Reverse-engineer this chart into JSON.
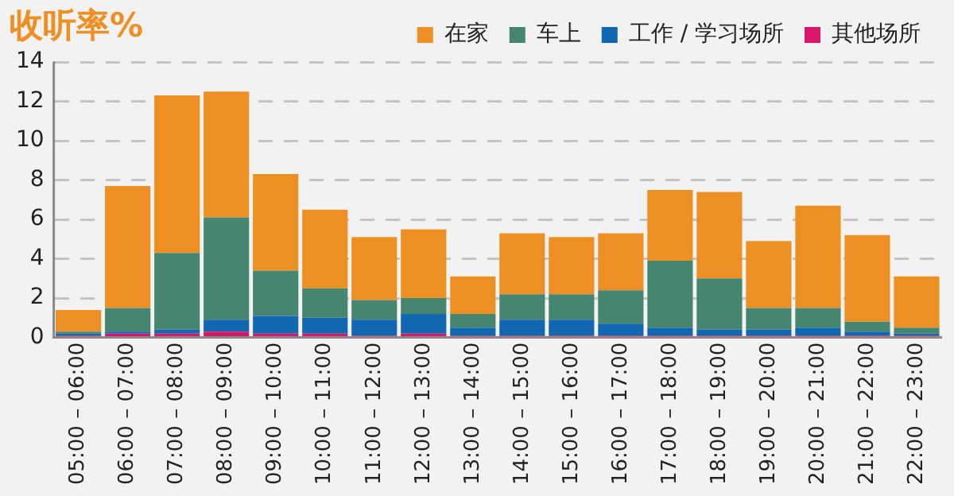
{
  "chart_data": {
    "type": "bar",
    "title": "收听率%",
    "stacked": true,
    "legend": "top right",
    "grid": "y",
    "categories": [
      "05:00 – 06:00",
      "06:00 – 07:00",
      "07:00 – 08:00",
      "08:00 – 09:00",
      "09:00 – 10:00",
      "10:00 – 11:00",
      "11:00 – 12:00",
      "12:00 – 13:00",
      "13:00 – 14:00",
      "14:00 – 15:00",
      "15:00 – 16:00",
      "16:00 – 17:00",
      "17:00 – 18:00",
      "18:00 – 19:00",
      "19:00 – 20:00",
      "20:00 – 21:00",
      "21:00 – 22:00",
      "22:00 – 23:00"
    ],
    "ylim": [
      0,
      14
    ],
    "yticks": [
      0,
      2,
      4,
      6,
      8,
      10,
      12,
      14
    ],
    "series": [
      {
        "name": "其他场所",
        "color": "#d8176a",
        "values": [
          0.1,
          0.2,
          0.2,
          0.3,
          0.2,
          0.2,
          0.1,
          0.2,
          0.1,
          0.1,
          0.1,
          0.1,
          0.1,
          0.1,
          0.1,
          0.1,
          0.1,
          0.1
        ]
      },
      {
        "name": "工作 / 学习场所",
        "color": "#1267b2",
        "values": [
          0.1,
          0.1,
          0.2,
          0.6,
          0.9,
          0.8,
          0.8,
          1.0,
          0.4,
          0.8,
          0.8,
          0.6,
          0.4,
          0.3,
          0.3,
          0.4,
          0.2,
          0.1
        ]
      },
      {
        "name": "车上",
        "color": "#468670",
        "values": [
          0.1,
          1.2,
          3.9,
          5.2,
          2.3,
          1.5,
          1.0,
          0.8,
          0.7,
          1.3,
          1.3,
          1.7,
          3.4,
          2.6,
          1.1,
          1.0,
          0.5,
          0.3
        ]
      },
      {
        "name": "在家",
        "color": "#ee8f24",
        "values": [
          1.1,
          6.2,
          8.0,
          6.4,
          4.9,
          4.0,
          3.2,
          3.5,
          1.9,
          3.1,
          2.9,
          2.9,
          3.6,
          4.4,
          3.4,
          5.2,
          4.4,
          2.6
        ]
      }
    ]
  }
}
